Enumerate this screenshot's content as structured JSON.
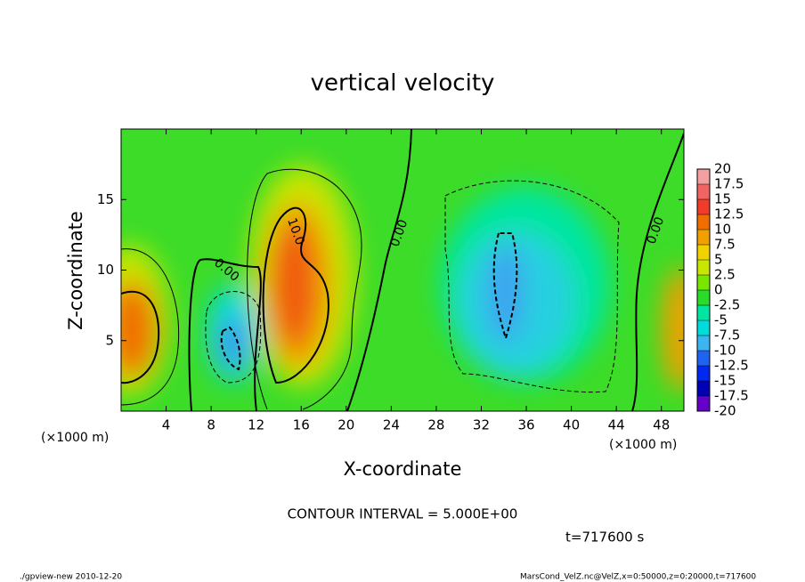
{
  "chart_data": {
    "type": "contour",
    "title": "vertical velocity",
    "x_label": "X-coordinate",
    "y_label": "Z-coordinate",
    "x_unit": "(×1000 m)",
    "xlim": [
      0,
      50
    ],
    "xticks": [
      4,
      8,
      12,
      16,
      20,
      24,
      28,
      32,
      36,
      40,
      44,
      48
    ],
    "ylim": [
      0,
      20
    ],
    "yticks": [
      5,
      10,
      15
    ],
    "contour_labels": [
      "0.00",
      "10.0",
      "0.00",
      "0.00"
    ],
    "contour_interval": "CONTOUR INTERVAL = 5.000E+00",
    "time": "t=717600 s",
    "footer_left": "./gpview-new  2010-12-20",
    "footer_right": "MarsCond_VelZ.nc@VelZ,x=0:50000,z=0:20000,t=717600",
    "colorbar": {
      "levels": [
        20,
        17.5,
        15,
        12.5,
        10,
        7.5,
        5,
        2.5,
        0,
        -2.5,
        -5,
        -7.5,
        -10,
        -12.5,
        -15,
        -17.5,
        -20
      ],
      "colors": [
        "#f4a0a0",
        "#f06464",
        "#f03c28",
        "#f06e00",
        "#f0a000",
        "#f0d200",
        "#c8e600",
        "#78e600",
        "#28dc28",
        "#00e6a0",
        "#00dcdc",
        "#3cb4f0",
        "#1e64f0",
        "#0028f0",
        "#0000b4",
        "#6400c8"
      ]
    }
  }
}
